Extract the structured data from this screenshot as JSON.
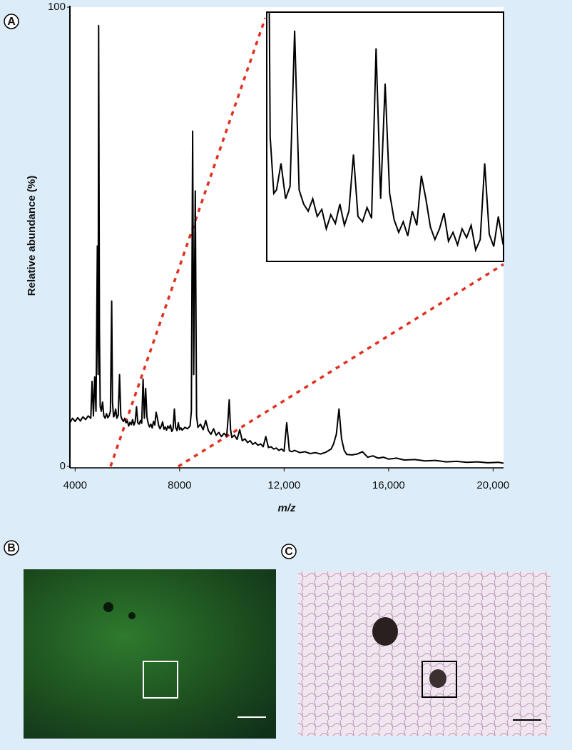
{
  "chart_data": {
    "type": "line",
    "panel_label": "A",
    "x_label": "m/z",
    "y_label": "Relative abundance (%)",
    "xlim": [
      3800,
      20400
    ],
    "ylim": [
      0,
      100
    ],
    "xticks": [
      4000,
      8000,
      {
        "value": 12000,
        "label": "12,000"
      },
      {
        "value": 16000,
        "label": "16,000"
      },
      {
        "value": 20000,
        "label": "20,000"
      }
    ],
    "yticks": [
      0,
      100
    ],
    "color": "#000000",
    "inset_xlim": [
      5400,
      8000
    ],
    "inset_ylim": [
      7,
      21
    ],
    "x": [
      3800,
      3900,
      4000,
      4100,
      4200,
      4300,
      4400,
      4500,
      4600,
      4650,
      4700,
      4750,
      4800,
      4850,
      4880,
      4900,
      4930,
      4960,
      5000,
      5050,
      5100,
      5150,
      5200,
      5250,
      5300,
      5350,
      5400,
      5430,
      5470,
      5500,
      5550,
      5600,
      5650,
      5700,
      5750,
      5800,
      5850,
      5900,
      5950,
      6000,
      6050,
      6100,
      6150,
      6200,
      6250,
      6300,
      6350,
      6400,
      6450,
      6500,
      6550,
      6600,
      6650,
      6700,
      6750,
      6800,
      6850,
      6900,
      6950,
      7000,
      7050,
      7100,
      7150,
      7200,
      7250,
      7300,
      7350,
      7400,
      7450,
      7500,
      7550,
      7600,
      7650,
      7700,
      7750,
      7800,
      7850,
      7900,
      7950,
      8000,
      8050,
      8100,
      8200,
      8300,
      8400,
      8450,
      8500,
      8540,
      8600,
      8650,
      8700,
      8800,
      8900,
      9000,
      9100,
      9200,
      9300,
      9400,
      9500,
      9600,
      9700,
      9800,
      9850,
      9900,
      9950,
      10000,
      10100,
      10200,
      10300,
      10400,
      10500,
      10600,
      10700,
      10800,
      10900,
      11000,
      11100,
      11200,
      11300,
      11400,
      11500,
      11600,
      11700,
      11800,
      11900,
      12000,
      12100,
      12200,
      12300,
      12400,
      12600,
      12800,
      13000,
      13200,
      13400,
      13600,
      13800,
      13900,
      14000,
      14100,
      14200,
      14300,
      14400,
      14600,
      14800,
      15000,
      15200,
      15400,
      15600,
      15800,
      16000,
      16300,
      16600,
      17000,
      17400,
      17800,
      18200,
      18600,
      19000,
      19400,
      19800,
      20200,
      20400
    ],
    "values": [
      9.5,
      10.5,
      9.8,
      10.6,
      9.9,
      10.8,
      10.2,
      11,
      10.5,
      18.5,
      11,
      19.5,
      12,
      48,
      20,
      96,
      30,
      13,
      12,
      14,
      11,
      10.5,
      11.5,
      10.6,
      11,
      12,
      36,
      14,
      10.8,
      11,
      12.5,
      10.5,
      11.2,
      20,
      11,
      10.2,
      9.8,
      10.5,
      9.5,
      9.9,
      8.8,
      9.6,
      9.1,
      10.2,
      9,
      9.8,
      13,
      9.5,
      9.2,
      10,
      9.4,
      19,
      10.5,
      17,
      10.8,
      9.3,
      8.6,
      9.2,
      8.4,
      9.8,
      9,
      11.8,
      10.5,
      8.9,
      8.2,
      8.8,
      9.7,
      8.1,
      8.6,
      7.9,
      8.8,
      8.3,
      9,
      7.6,
      8.2,
      12.5,
      8.5,
      7.8,
      9.5,
      8,
      8.4,
      7.9,
      8.5,
      8.2,
      8.8,
      12,
      73,
      20,
      60,
      11,
      8.5,
      9.2,
      8,
      10,
      7.8,
      7,
      8.2,
      6.8,
      7.4,
      6.5,
      7.2,
      6.6,
      10,
      14.5,
      8,
      6.3,
      6.8,
      5.9,
      8,
      5.6,
      6,
      5.2,
      5.6,
      4.8,
      5.2,
      4.6,
      4.9,
      4.3,
      6.5,
      4.1,
      4.3,
      3.8,
      4,
      3.5,
      3.8,
      3.3,
      9.5,
      3.4,
      3.2,
      3.5,
      3,
      3.2,
      2.8,
      3,
      2.7,
      3.1,
      3.8,
      5,
      7,
      12.5,
      6,
      3.5,
      2.6,
      2.5,
      2.7,
      3.2,
      2,
      2.3,
      1.8,
      2,
      1.6,
      1.8,
      1.4,
      1.5,
      1.2,
      1.3,
      1,
      1.1,
      0.9,
      1,
      0.8,
      0.9,
      0.7
    ]
  },
  "panels": [
    {
      "label": "B"
    },
    {
      "label": "C"
    }
  ]
}
